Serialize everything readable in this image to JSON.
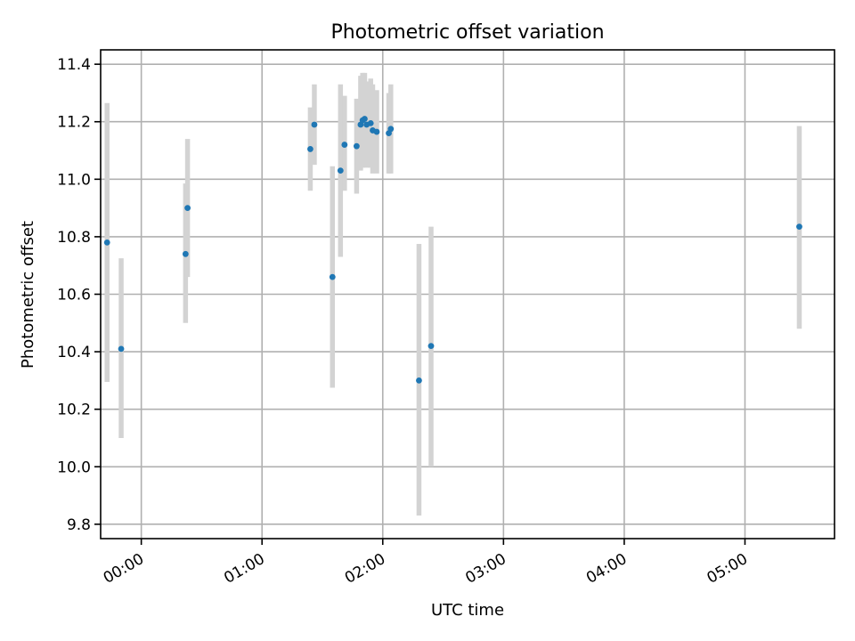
{
  "chart_data": {
    "type": "scatter",
    "title": "Photometric offset variation",
    "xlabel": "UTC time",
    "ylabel": "Photometric offset",
    "xlim": [
      "-00:17",
      "05:44"
    ],
    "ylim": [
      9.75,
      11.45
    ],
    "xticks": [
      "00:00",
      "01:00",
      "02:00",
      "03:00",
      "04:00",
      "05:00"
    ],
    "yticks": [
      "9.8",
      "10.0",
      "10.2",
      "10.4",
      "10.6",
      "10.8",
      "11.0",
      "11.2",
      "11.4"
    ],
    "grid": true,
    "errorbar_color": "#d3d3d3",
    "marker_color": "#1f77b4",
    "points": [
      {
        "x": "-00:17",
        "y": 10.78,
        "lo": 10.295,
        "hi": 11.265
      },
      {
        "x": "-00:10",
        "y": 10.41,
        "lo": 10.1,
        "hi": 10.725
      },
      {
        "x": "00:22",
        "y": 10.74,
        "lo": 10.5,
        "hi": 10.985
      },
      {
        "x": "00:23",
        "y": 10.9,
        "lo": 10.66,
        "hi": 11.14
      },
      {
        "x": "01:24",
        "y": 11.105,
        "lo": 10.96,
        "hi": 11.25
      },
      {
        "x": "01:26",
        "y": 11.19,
        "lo": 11.05,
        "hi": 11.33
      },
      {
        "x": "01:35",
        "y": 10.66,
        "lo": 10.275,
        "hi": 11.045
      },
      {
        "x": "01:39",
        "y": 11.03,
        "lo": 10.73,
        "hi": 11.33
      },
      {
        "x": "01:41",
        "y": 11.12,
        "lo": 10.96,
        "hi": 11.29
      },
      {
        "x": "01:47",
        "y": 11.115,
        "lo": 10.95,
        "hi": 11.28
      },
      {
        "x": "01:49",
        "y": 11.19,
        "lo": 11.03,
        "hi": 11.36
      },
      {
        "x": "01:50",
        "y": 11.205,
        "lo": 11.04,
        "hi": 11.37
      },
      {
        "x": "01:51",
        "y": 11.21,
        "lo": 11.05,
        "hi": 11.37
      },
      {
        "x": "01:52",
        "y": 11.19,
        "lo": 11.04,
        "hi": 11.34
      },
      {
        "x": "01:54",
        "y": 11.195,
        "lo": 11.04,
        "hi": 11.35
      },
      {
        "x": "01:55",
        "y": 11.17,
        "lo": 11.02,
        "hi": 11.33
      },
      {
        "x": "01:57",
        "y": 11.165,
        "lo": 11.02,
        "hi": 11.31
      },
      {
        "x": "02:03",
        "y": 11.16,
        "lo": 11.02,
        "hi": 11.3
      },
      {
        "x": "02:04",
        "y": 11.175,
        "lo": 11.02,
        "hi": 11.33
      },
      {
        "x": "02:18",
        "y": 10.3,
        "lo": 9.83,
        "hi": 10.775
      },
      {
        "x": "02:24",
        "y": 10.42,
        "lo": 10.0,
        "hi": 10.835
      },
      {
        "x": "05:27",
        "y": 10.835,
        "lo": 10.48,
        "hi": 11.185
      }
    ]
  }
}
